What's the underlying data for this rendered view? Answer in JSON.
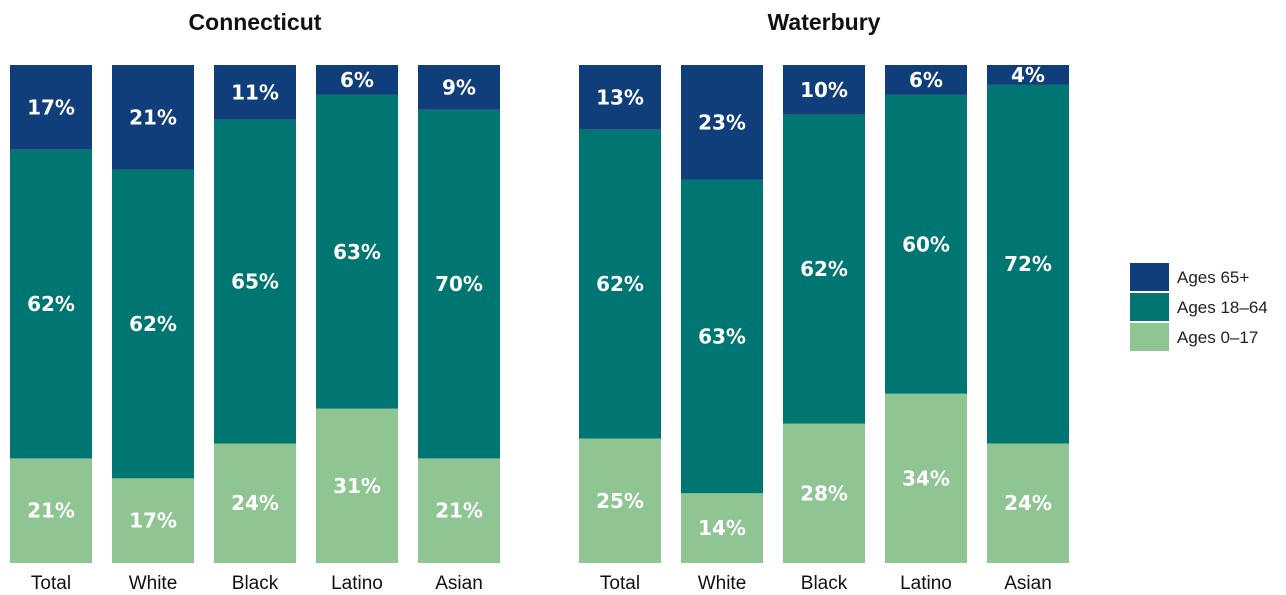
{
  "chart_data": {
    "type": "bar",
    "stacked": true,
    "normalized": true,
    "legend_position": "right",
    "legend": [
      {
        "key": "65",
        "label": "Ages 65+",
        "color": "#0f3e7a"
      },
      {
        "key": "1864",
        "label": "Ages 18–64",
        "color": "#007672"
      },
      {
        "key": "017",
        "label": "Ages 0–17",
        "color": "#8fc592"
      }
    ],
    "panels": [
      {
        "title": "Connecticut",
        "categories": [
          "Total",
          "White",
          "Black",
          "Latino",
          "Asian"
        ],
        "series": [
          {
            "key": "017",
            "values": [
              21,
              17,
              24,
              31,
              21
            ],
            "labels": [
              "21%",
              "17%",
              "24%",
              "31%",
              "21%"
            ]
          },
          {
            "key": "1864",
            "values": [
              62,
              62,
              65,
              63,
              70
            ],
            "labels": [
              "62%",
              "62%",
              "65%",
              "63%",
              "70%"
            ]
          },
          {
            "key": "65",
            "values": [
              17,
              21,
              11,
              6,
              9
            ],
            "labels": [
              "17%",
              "21%",
              "11%",
              "6%",
              "9%"
            ]
          }
        ]
      },
      {
        "title": "Waterbury",
        "categories": [
          "Total",
          "White",
          "Black",
          "Latino",
          "Asian"
        ],
        "series": [
          {
            "key": "017",
            "values": [
              25,
              14,
              28,
              34,
              24
            ],
            "labels": [
              "25%",
              "14%",
              "28%",
              "34%",
              "24%"
            ]
          },
          {
            "key": "1864",
            "values": [
              62,
              63,
              62,
              60,
              72
            ],
            "labels": [
              "62%",
              "63%",
              "62%",
              "60%",
              "72%"
            ]
          },
          {
            "key": "65",
            "values": [
              13,
              23,
              10,
              6,
              4
            ],
            "labels": [
              "13%",
              "23%",
              "10%",
              "6%",
              "4%"
            ]
          }
        ]
      }
    ]
  }
}
